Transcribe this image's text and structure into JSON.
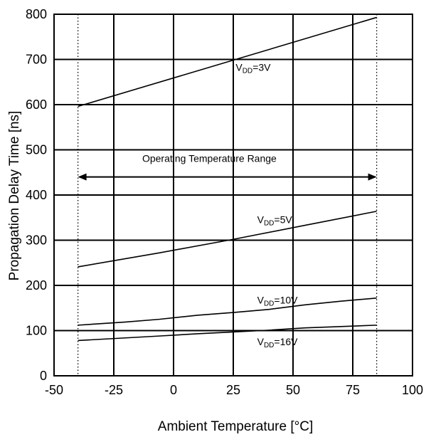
{
  "chart_data": {
    "type": "line",
    "xlabel": "Ambient Temperature [°C]",
    "ylabel": "Propagation Delay Time [ns]",
    "xlim": [
      -50,
      100
    ],
    "ylim": [
      0,
      800
    ],
    "x_ticks": [
      "-50",
      "-25",
      "0",
      "25",
      "50",
      "75",
      "100"
    ],
    "y_ticks": [
      "0",
      "100",
      "200",
      "300",
      "400",
      "500",
      "600",
      "700",
      "800"
    ],
    "grid": true,
    "series": [
      {
        "label_prefix": "V",
        "label_sub": "DD",
        "label_suffix": "=3V",
        "label_anchor": [
          26,
          675
        ],
        "x": [
          -40,
          85
        ],
        "y": [
          596,
          793
        ]
      },
      {
        "label_prefix": "V",
        "label_sub": "DD",
        "label_suffix": "=5V",
        "label_anchor": [
          35,
          338
        ],
        "x": [
          -40,
          -6,
          25,
          55,
          85
        ],
        "y": [
          241,
          272,
          302,
          333,
          364
        ]
      },
      {
        "label_prefix": "V",
        "label_sub": "DD",
        "label_suffix": "=10V",
        "label_anchor": [
          35,
          160
        ],
        "x": [
          -40,
          -20,
          -6,
          10,
          25,
          40,
          55,
          70,
          85
        ],
        "y": [
          112,
          119,
          125,
          134,
          140,
          147,
          157,
          165,
          172
        ]
      },
      {
        "label_prefix": "V",
        "label_sub": "DD",
        "label_suffix": "=16V",
        "label_anchor": [
          35,
          68
        ],
        "x": [
          -40,
          -6,
          10,
          25,
          40,
          55,
          70,
          85
        ],
        "y": [
          78,
          88,
          93,
          97,
          101,
          106,
          109,
          112
        ]
      }
    ],
    "operating_range": {
      "label": "Operating Temperature Range",
      "x": [
        -40,
        85
      ],
      "y": 440,
      "label_anchor": [
        15,
        473
      ]
    }
  }
}
